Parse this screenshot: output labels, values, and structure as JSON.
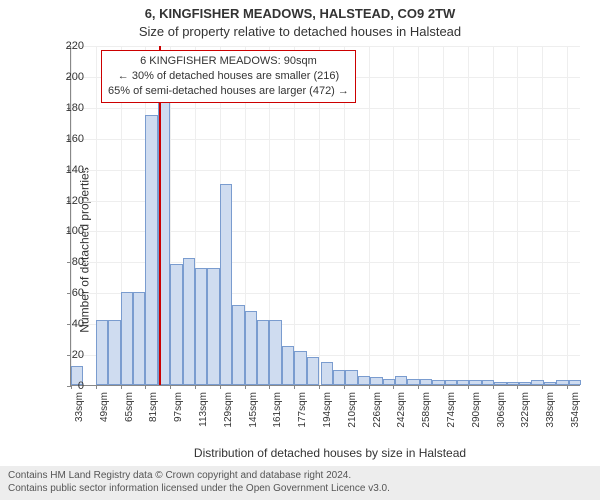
{
  "title_line1": "6, KINGFISHER MEADOWS, HALSTEAD, CO9 2TW",
  "title_line2": "Size of property relative to detached houses in Halstead",
  "ylabel": "Number of detached properties",
  "xlabel": "Distribution of detached houses by size in Halstead",
  "footer_line1": "Contains HM Land Registry data © Crown copyright and database right 2024.",
  "footer_line2": "Contains public sector information licensed under the Open Government Licence v3.0.",
  "chart": {
    "type": "histogram",
    "ylim": [
      0,
      220
    ],
    "ytick_step": 20,
    "bar_fill": "#cfdcf0",
    "bar_stroke": "#7a9ccf",
    "grid_color": "#eeeeee",
    "axis_color": "#888888",
    "background_color": "#ffffff",
    "marker_color": "#cc0000",
    "marker_x_label": "90sqm",
    "x_tick_labels": [
      "33sqm",
      "49sqm",
      "65sqm",
      "81sqm",
      "97sqm",
      "113sqm",
      "129sqm",
      "145sqm",
      "161sqm",
      "177sqm",
      "194sqm",
      "210sqm",
      "226sqm",
      "242sqm",
      "258sqm",
      "274sqm",
      "290sqm",
      "306sqm",
      "322sqm",
      "338sqm",
      "354sqm"
    ],
    "x_tick_step_label": 16,
    "bars": [
      {
        "x": 33,
        "y": 12
      },
      {
        "x": 49,
        "y": 42
      },
      {
        "x": 57,
        "y": 42
      },
      {
        "x": 65,
        "y": 60
      },
      {
        "x": 73,
        "y": 60
      },
      {
        "x": 81,
        "y": 175
      },
      {
        "x": 89,
        "y": 200
      },
      {
        "x": 97,
        "y": 78
      },
      {
        "x": 105,
        "y": 82
      },
      {
        "x": 113,
        "y": 76
      },
      {
        "x": 121,
        "y": 76
      },
      {
        "x": 129,
        "y": 130
      },
      {
        "x": 137,
        "y": 52
      },
      {
        "x": 145,
        "y": 48
      },
      {
        "x": 153,
        "y": 42
      },
      {
        "x": 161,
        "y": 42
      },
      {
        "x": 169,
        "y": 25
      },
      {
        "x": 177,
        "y": 22
      },
      {
        "x": 185,
        "y": 18
      },
      {
        "x": 194,
        "y": 15
      },
      {
        "x": 202,
        "y": 10
      },
      {
        "x": 210,
        "y": 10
      },
      {
        "x": 218,
        "y": 6
      },
      {
        "x": 226,
        "y": 5
      },
      {
        "x": 234,
        "y": 4
      },
      {
        "x": 242,
        "y": 6
      },
      {
        "x": 250,
        "y": 4
      },
      {
        "x": 258,
        "y": 4
      },
      {
        "x": 266,
        "y": 3
      },
      {
        "x": 274,
        "y": 3
      },
      {
        "x": 282,
        "y": 3
      },
      {
        "x": 290,
        "y": 3
      },
      {
        "x": 298,
        "y": 3
      },
      {
        "x": 306,
        "y": 2
      },
      {
        "x": 314,
        "y": 2
      },
      {
        "x": 322,
        "y": 2
      },
      {
        "x": 330,
        "y": 3
      },
      {
        "x": 338,
        "y": 2
      },
      {
        "x": 346,
        "y": 3
      },
      {
        "x": 354,
        "y": 3
      }
    ],
    "x_min": 33,
    "x_max": 362,
    "bar_width_units": 8,
    "marker_x": 90,
    "annotation": {
      "line1": "6 KINGFISHER MEADOWS: 90sqm",
      "line2": "← 30% of detached houses are smaller (216)",
      "line3": "65% of semi-detached houses are larger (472) →"
    }
  }
}
